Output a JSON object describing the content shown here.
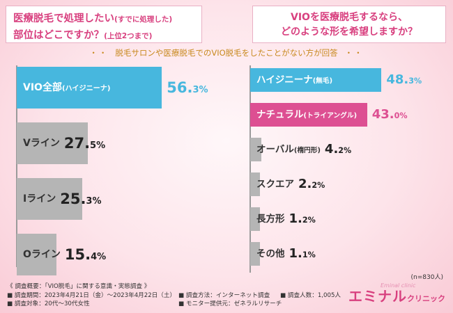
{
  "question_left": {
    "line1": "医療脱毛で処理したい",
    "line1_small": "(すでに処理した)",
    "line2": "部位はどこですか？",
    "line2_small": "(上位2つまで)"
  },
  "question_right": {
    "line1": "VIOを医療脱毛するなら、",
    "line2": "どのような形を希望しますか？"
  },
  "subtitle": "脱毛サロンや医療脱毛でのVIO脱毛をしたことがない方が回答",
  "subtitle_dots": "・・",
  "colors": {
    "blue": "#47b7de",
    "pink": "#dd4f92",
    "gray": "#b5b5b5",
    "title_pink": "#d8407f",
    "orange": "#c8891e"
  },
  "chart_data": [
    {
      "type": "bar",
      "orientation": "horizontal",
      "unit": "%",
      "categories": [
        "VIO全部(ハイジニーナ)",
        "Vライン",
        "Iライン",
        "Oライン"
      ],
      "values": [
        56.3,
        27.5,
        25.3,
        15.4
      ],
      "labels": [
        {
          "main": "VIO全部",
          "sub": "(ハイジニーナ)",
          "int": "56.",
          "dec": "3%"
        },
        {
          "main": "Vライン",
          "sub": "",
          "int": "27.",
          "dec": "5%"
        },
        {
          "main": "Iライン",
          "sub": "",
          "int": "25.",
          "dec": "3%"
        },
        {
          "main": "Oライン",
          "sub": "",
          "int": "15.",
          "dec": "4%"
        }
      ],
      "highlight": [
        0
      ]
    },
    {
      "type": "bar",
      "orientation": "horizontal",
      "unit": "%",
      "categories": [
        "ハイジニーナ(無毛)",
        "ナチュラル(トライアングル)",
        "オーバル(楕円形)",
        "スクエア",
        "長方形",
        "その他"
      ],
      "values": [
        48.3,
        43.0,
        4.2,
        2.2,
        1.2,
        1.1
      ],
      "labels": [
        {
          "main": "ハイジニーナ",
          "sub": "(無毛)",
          "int": "48.",
          "dec": "3%"
        },
        {
          "main": "ナチュラル",
          "sub": "(トライアングル)",
          "int": "43.",
          "dec": "0%"
        },
        {
          "main": "オーバル",
          "sub": "(楕円形)",
          "int": "4.",
          "dec": "2%"
        },
        {
          "main": "スクエア",
          "sub": "",
          "int": "2.",
          "dec": "2%"
        },
        {
          "main": "長方形",
          "sub": "",
          "int": "1.",
          "dec": "2%"
        },
        {
          "main": "その他",
          "sub": "",
          "int": "1.",
          "dec": "1%"
        }
      ],
      "highlight": [
        0,
        1
      ]
    }
  ],
  "n_count": "(n=830人)",
  "footer": {
    "heading": "《 調査概要：「VIO脱毛」に関する意識・実態調査 》",
    "period": "■ 調査期間：2023年4月21日（金）～2023年4月22日（土）",
    "method": "■ 調査方法：インターネット調査",
    "people": "■ 調査人数：1,005人",
    "target": "■ 調査対象：20代～30代女性",
    "provider": "■ モニター提供元：ゼネラルリサーチ"
  },
  "logo": {
    "name1": "エミナル",
    "name2": "クリニック",
    "signature": "Eminal clinic"
  }
}
